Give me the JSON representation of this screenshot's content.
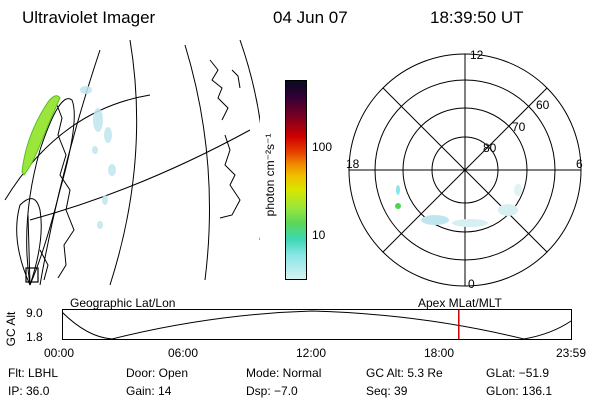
{
  "header": {
    "instrument": "Ultraviolet Imager",
    "date": "04 Jun 07",
    "time": "18:39:50 UT"
  },
  "colorbar": {
    "label": "photon cm⁻²s⁻¹",
    "ticks": [
      "100",
      "10"
    ]
  },
  "polar": {
    "mlt_labels": {
      "top": "12",
      "left": "18",
      "right": "6",
      "bottom": "0"
    },
    "lat_labels": [
      "60",
      "70",
      "80"
    ]
  },
  "timeline": {
    "left_label": "Geographic Lat/Lon",
    "right_label": "Apex MLat/MLT",
    "axis_title": "GC Alt",
    "alt_max": "9.0",
    "alt_min": "1.8",
    "times": [
      "00:00",
      "06:00",
      "12:00",
      "18:00",
      "23:59"
    ],
    "current_time_fraction": 0.778,
    "marker_color": "#cc0000"
  },
  "status": {
    "filter": "Flt: LBHL",
    "door": "Door: Open",
    "mode": "Mode: Normal",
    "gc_alt": "GC Alt: 5.3 Re",
    "glat": "GLat: −51.9",
    "ip": "IP: 36.0",
    "gain": "Gain: 14",
    "dsp": "Dsp:   −7.0",
    "seq": "Seq: 39",
    "glon": "GLon: 136.1"
  }
}
